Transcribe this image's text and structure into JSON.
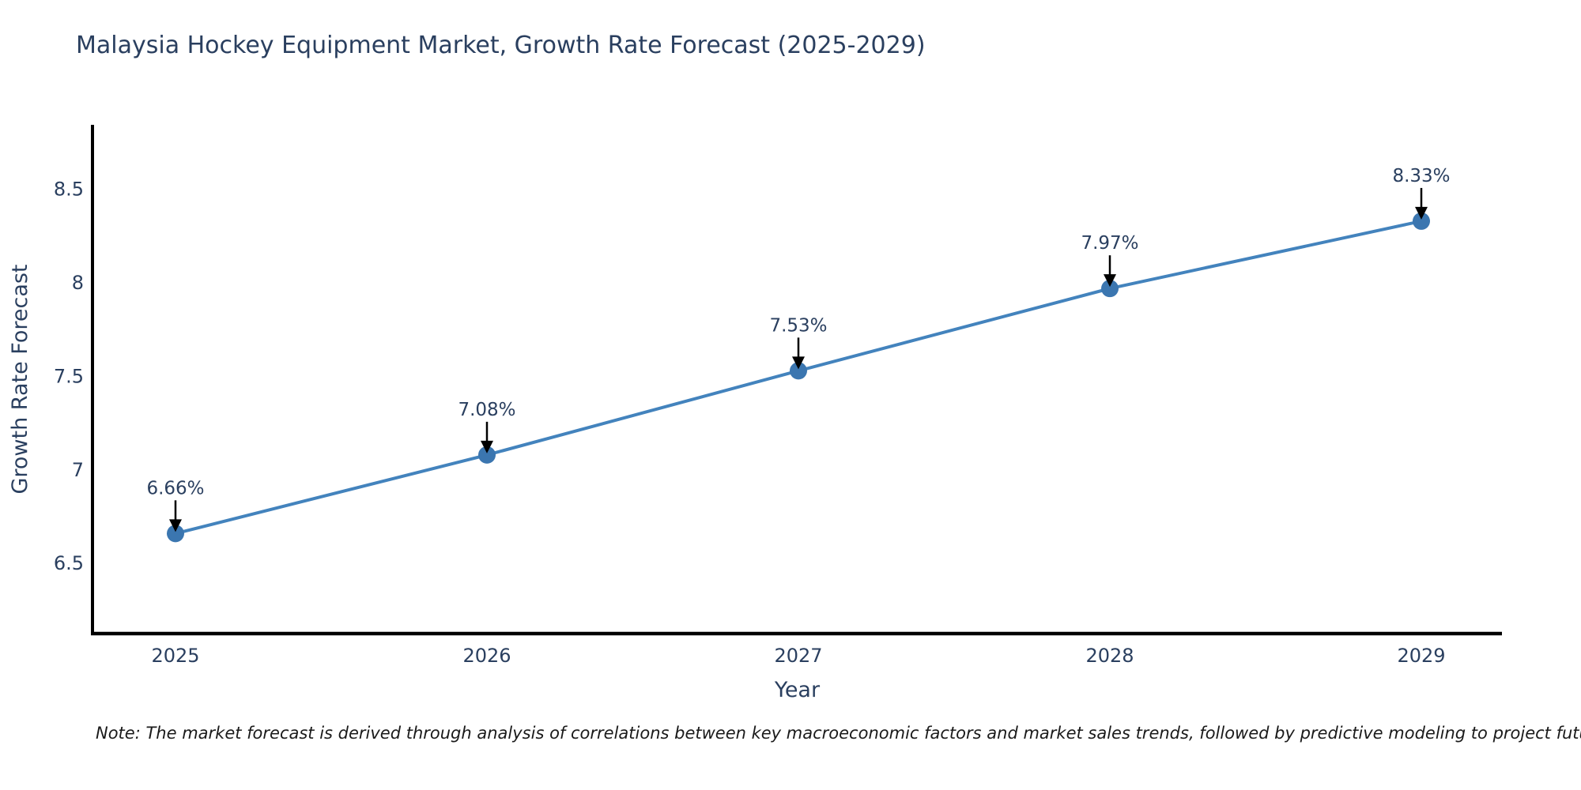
{
  "note": "Note: The market forecast is derived through analysis of correlations between key macroeconomic factors and market sales trends, followed by predictive modeling to project future sales",
  "chart_data": {
    "type": "line",
    "title": "Malaysia Hockey Equipment Market, Growth Rate Forecast (2025-2029)",
    "xlabel": "Year",
    "ylabel": "Growth Rate Forecast",
    "categories": [
      "2025",
      "2026",
      "2027",
      "2028",
      "2029"
    ],
    "values": [
      6.66,
      7.08,
      7.53,
      7.97,
      8.33
    ],
    "point_labels": [
      "6.66%",
      "7.08%",
      "7.53%",
      "7.97%",
      "8.33%"
    ],
    "yticks": [
      6.5,
      7,
      7.5,
      8,
      8.5
    ],
    "ylim": [
      6.125,
      8.845
    ],
    "grid": false,
    "legend": false,
    "annotation_arrows": true,
    "colors": {
      "line": "#4383bd",
      "marker": "#3b76b0",
      "axis": "#000000",
      "title": "#2a3f5f",
      "tick_labels": "#2a3f5f",
      "annotation_text": "#2a3f5f",
      "arrow": "#000000",
      "note_text": "#1a1a1a",
      "background": "#ffffff"
    }
  }
}
